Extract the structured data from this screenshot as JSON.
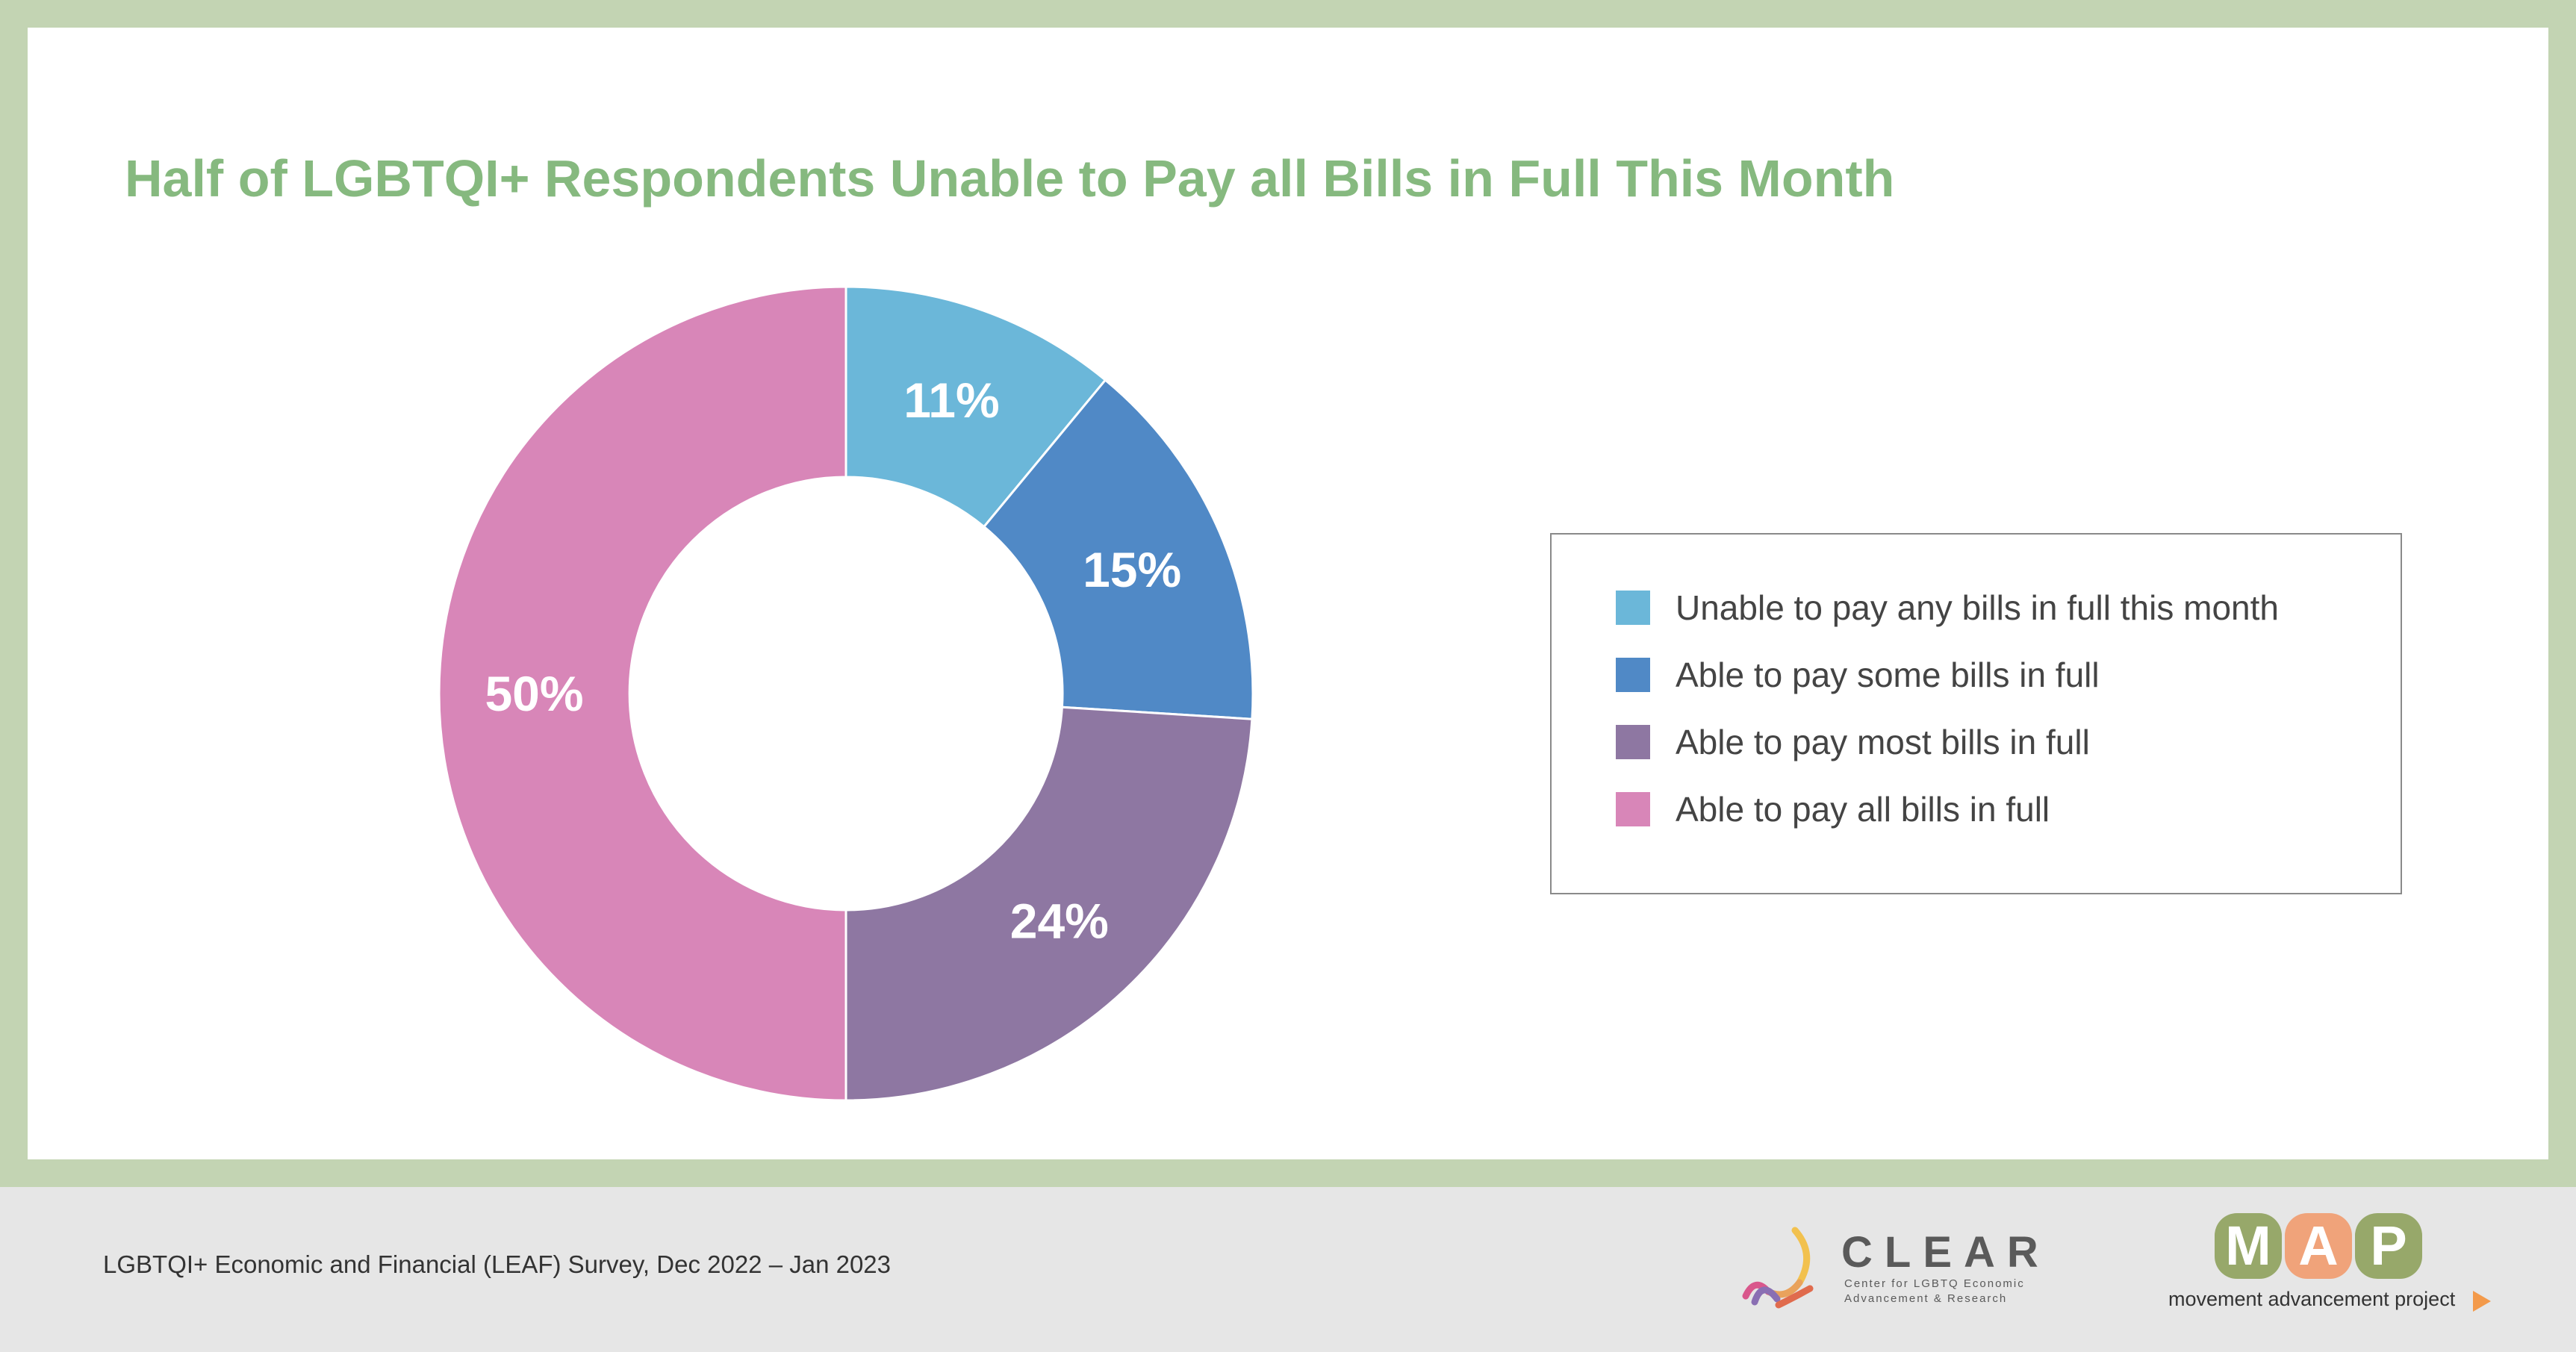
{
  "title": "Half of LGBTQI+ Respondents Unable to Pay all Bills in Full This Month",
  "chart_data": {
    "type": "pie",
    "title": "Half of LGBTQI+ Respondents Unable to Pay all Bills in Full This Month",
    "donut": true,
    "categories": [
      "Unable to pay any bills in full this month",
      "Able to pay some bills in full",
      "Able to pay most bills in full",
      "Able to pay all bills in full"
    ],
    "values": [
      11,
      15,
      24,
      50
    ],
    "data_labels": [
      "11%",
      "15%",
      "24%",
      "50%"
    ],
    "colors": [
      "#6bb7d9",
      "#5089c6",
      "#8e77a2",
      "#d886b8"
    ],
    "legend_position": "right"
  },
  "legend": {
    "items": [
      {
        "label": "Unable to pay any bills in full this month",
        "color": "#6bb7d9"
      },
      {
        "label": "Able to pay some bills in full",
        "color": "#5089c6"
      },
      {
        "label": "Able to pay most bills in full",
        "color": "#8e77a2"
      },
      {
        "label": "Able to pay all bills in full",
        "color": "#d886b8"
      }
    ]
  },
  "footer": {
    "source": "LGBTQI+ Economic and Financial (LEAF) Survey, Dec 2022 – Jan 2023",
    "clear_logo": {
      "name": "CLEAR",
      "subtitle_line1": "Center for LGBTQ Economic",
      "subtitle_line2": "Advancement & Research"
    },
    "map_logo": {
      "letters": [
        "M",
        "A",
        "P"
      ],
      "letter_colors": [
        "#97a86a",
        "#f0a37a",
        "#97a86a"
      ],
      "tagline": "movement advancement project",
      "arrow_color": "#f39a4b"
    }
  },
  "colors": {
    "frame": "#c3d4b3",
    "title": "#86b97f",
    "footer_bg": "#e6e6e6"
  }
}
